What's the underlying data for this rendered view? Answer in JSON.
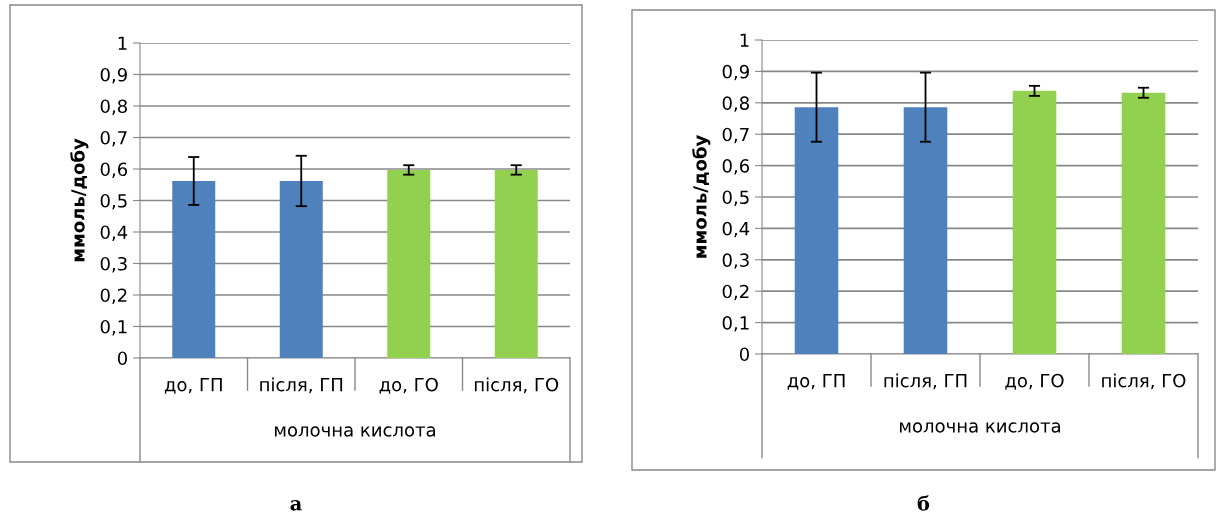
{
  "chart_data": [
    {
      "type": "bar",
      "categories": [
        "до, ГП",
        "після, ГП",
        "до, ГО",
        "після, ГО"
      ],
      "values": [
        0.562,
        0.562,
        0.597,
        0.597
      ],
      "errors": [
        0.076,
        0.08,
        0.015,
        0.015
      ],
      "colors": [
        "#4f81bd",
        "#4f81bd",
        "#92d050",
        "#92d050"
      ],
      "ylabel": "ммоль/добу",
      "xlabel": "молочна кислота",
      "ylim": [
        0,
        1
      ],
      "yticks": [
        0,
        {
          "value": 0.1,
          "label": "0,1"
        },
        {
          "value": 0.2,
          "label": "0,2"
        },
        {
          "value": 0.3,
          "label": "0,3"
        },
        {
          "value": 0.4,
          "label": "0,4"
        },
        {
          "value": 0.5,
          "label": "0,5"
        },
        {
          "value": 0.6,
          "label": "0,6"
        },
        {
          "value": 0.7,
          "label": "0,7"
        },
        {
          "value": 0.8,
          "label": "0,8"
        },
        {
          "value": 0.9,
          "label": "0,9"
        },
        1
      ],
      "grid": "y",
      "annotations": [
        "а"
      ]
    },
    {
      "type": "bar",
      "categories": [
        "до, ГП",
        "після, ГП",
        "до, ГО",
        "після, ГО"
      ],
      "values": [
        0.786,
        0.786,
        0.838,
        0.832
      ],
      "errors": [
        0.11,
        0.11,
        0.016,
        0.016
      ],
      "colors": [
        "#4f81bd",
        "#4f81bd",
        "#92d050",
        "#92d050"
      ],
      "ylabel": "ммоль/добу",
      "xlabel": "молочна кислота",
      "ylim": [
        0,
        1
      ],
      "yticks": [
        0,
        {
          "value": 0.1,
          "label": "0,1"
        },
        {
          "value": 0.2,
          "label": "0,2"
        },
        {
          "value": 0.3,
          "label": "0,3"
        },
        {
          "value": 0.4,
          "label": "0,4"
        },
        {
          "value": 0.5,
          "label": "0,5"
        },
        {
          "value": 0.6,
          "label": "0,6"
        },
        {
          "value": 0.7,
          "label": "0,7"
        },
        {
          "value": 0.8,
          "label": "0,8"
        },
        {
          "value": 0.9,
          "label": "0,9"
        },
        1
      ],
      "grid": "y",
      "annotations": [
        "б"
      ]
    }
  ]
}
